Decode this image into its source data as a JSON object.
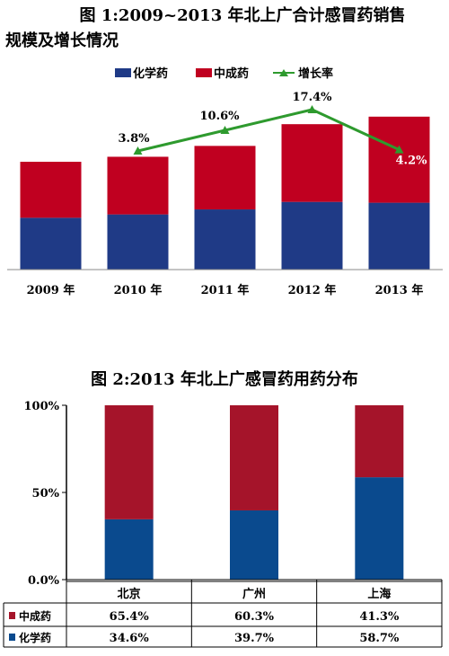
{
  "titles": {
    "chart1_line1": "图 1:2009~2013 年北上广合计感冒药销售",
    "chart1_line2": "规模及增长情况",
    "chart2": "图 2:2013 年北上广感冒药用药分布"
  },
  "colors": {
    "chemical": "#1f3a86",
    "tcm": "#c00020",
    "growth": "#2e9a2e",
    "chem2": "#0a4a8e",
    "tcm2": "#a5142a"
  },
  "chart_data": [
    {
      "type": "bar",
      "stacked": true,
      "categories": [
        "2009 年",
        "2010 年",
        "2011 年",
        "2012 年",
        "2013 年"
      ],
      "series": [
        {
          "name": "化学药",
          "values": [
            62,
            66,
            72,
            81,
            80
          ]
        },
        {
          "name": "中成药",
          "values": [
            67,
            69,
            76,
            93,
            103
          ]
        }
      ],
      "line_series": {
        "name": "增长率",
        "values": [
          3.8,
          10.6,
          17.4,
          4.2
        ],
        "labels": [
          "3.8%",
          "10.6%",
          "17.4%",
          "4.2%"
        ],
        "x_index": [
          1,
          2,
          3,
          4
        ]
      },
      "legend_position": "top",
      "grid": false
    },
    {
      "type": "bar",
      "stacked": true,
      "percent": true,
      "categories": [
        "北京",
        "广州",
        "上海"
      ],
      "series": [
        {
          "name": "中成药",
          "values": [
            65.4,
            60.3,
            41.3
          ],
          "labels": [
            "65.4%",
            "60.3%",
            "41.3%"
          ]
        },
        {
          "name": "化学药",
          "values": [
            34.6,
            39.7,
            58.7
          ],
          "labels": [
            "34.6%",
            "39.7%",
            "58.7%"
          ]
        }
      ],
      "y_ticks": [
        "0.0%",
        "50%",
        "100%"
      ],
      "ylim": [
        0,
        100
      ],
      "data_table": true
    }
  ]
}
